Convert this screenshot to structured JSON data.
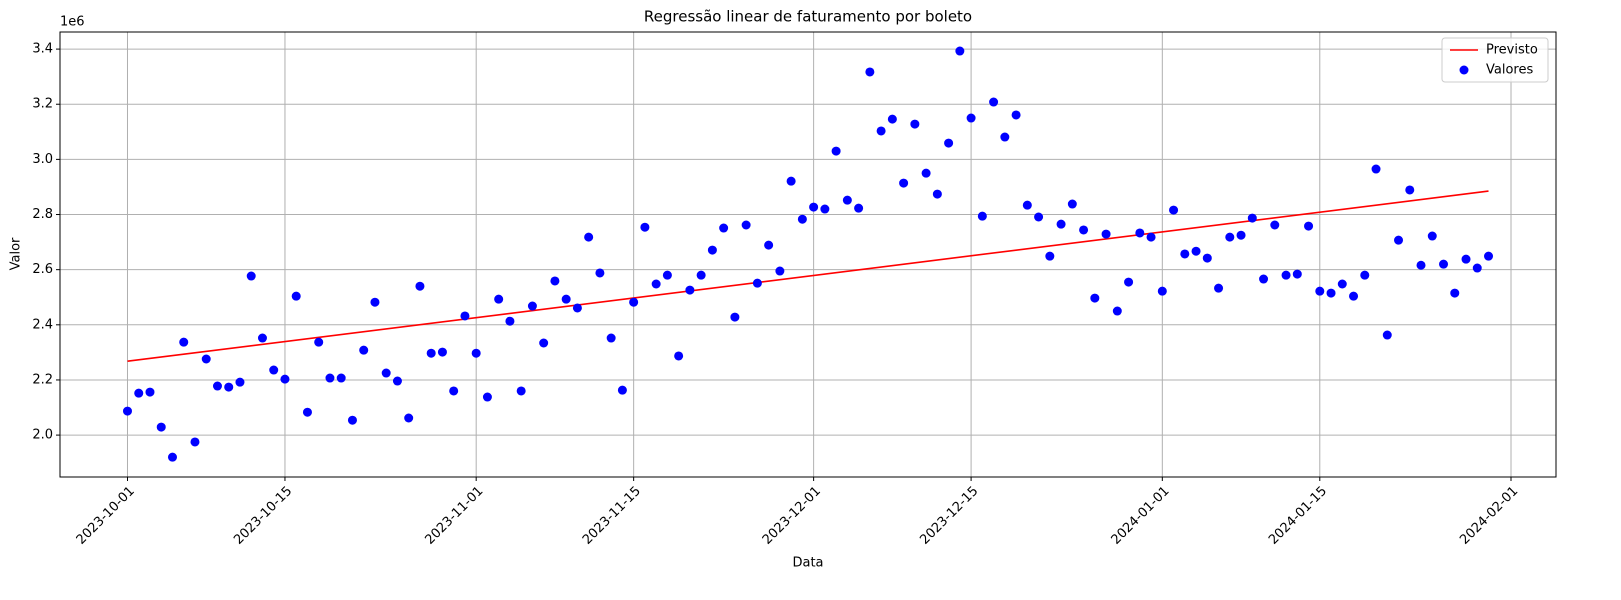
{
  "chart_data": {
    "type": "scatter",
    "title": "Regressão linear de faturamento por boleto",
    "xlabel": "Data",
    "ylabel": "Valor",
    "y_offset_label": "1e6",
    "grid": true,
    "legend": "upper right",
    "xlim": [
      "2023-09-25",
      "2024-02-05"
    ],
    "xticks": [
      "2023-10-01",
      "2023-10-15",
      "2023-11-01",
      "2023-11-15",
      "2023-12-01",
      "2023-12-15",
      "2024-01-01",
      "2024-01-15",
      "2024-02-01"
    ],
    "ylim": [
      1848000,
      3462000
    ],
    "yticks": [
      {
        "value": 2000000,
        "label": "2.0"
      },
      {
        "value": 2200000,
        "label": "2.2"
      },
      {
        "value": 2400000,
        "label": "2.4"
      },
      {
        "value": 2600000,
        "label": "2.6"
      },
      {
        "value": 2800000,
        "label": "2.8"
      },
      {
        "value": 3000000,
        "label": "3.0"
      },
      {
        "value": 3200000,
        "label": "3.2"
      },
      {
        "value": 3400000,
        "label": "3.4"
      }
    ],
    "series": [
      {
        "name": "Previsto",
        "type": "line",
        "color": "#ff0000",
        "x": [
          "2023-10-01",
          "2024-01-30"
        ],
        "values": [
          2268000,
          2885000
        ]
      },
      {
        "name": "Valores",
        "type": "scatter",
        "color": "#0000ff",
        "x": [
          "2023-10-01",
          "2023-10-02",
          "2023-10-03",
          "2023-10-04",
          "2023-10-05",
          "2023-10-06",
          "2023-10-07",
          "2023-10-08",
          "2023-10-09",
          "2023-10-10",
          "2023-10-11",
          "2023-10-12",
          "2023-10-13",
          "2023-10-14",
          "2023-10-15",
          "2023-10-16",
          "2023-10-17",
          "2023-10-18",
          "2023-10-19",
          "2023-10-20",
          "2023-10-21",
          "2023-10-22",
          "2023-10-23",
          "2023-10-24",
          "2023-10-25",
          "2023-10-26",
          "2023-10-27",
          "2023-10-28",
          "2023-10-29",
          "2023-10-30",
          "2023-10-31",
          "2023-11-01",
          "2023-11-02",
          "2023-11-03",
          "2023-11-04",
          "2023-11-05",
          "2023-11-06",
          "2023-11-07",
          "2023-11-08",
          "2023-11-09",
          "2023-11-10",
          "2023-11-11",
          "2023-11-12",
          "2023-11-13",
          "2023-11-14",
          "2023-11-15",
          "2023-11-16",
          "2023-11-17",
          "2023-11-18",
          "2023-11-19",
          "2023-11-20",
          "2023-11-21",
          "2023-11-22",
          "2023-11-23",
          "2023-11-24",
          "2023-11-25",
          "2023-11-26",
          "2023-11-27",
          "2023-11-28",
          "2023-11-29",
          "2023-11-30",
          "2023-12-01",
          "2023-12-02",
          "2023-12-03",
          "2023-12-04",
          "2023-12-05",
          "2023-12-06",
          "2023-12-07",
          "2023-12-08",
          "2023-12-09",
          "2023-12-10",
          "2023-12-11",
          "2023-12-12",
          "2023-12-13",
          "2023-12-14",
          "2023-12-15",
          "2023-12-16",
          "2023-12-17",
          "2023-12-18",
          "2023-12-19",
          "2023-12-20",
          "2023-12-21",
          "2023-12-22",
          "2023-12-23",
          "2023-12-24",
          "2023-12-25",
          "2023-12-26",
          "2023-12-27",
          "2023-12-28",
          "2023-12-29",
          "2023-12-30",
          "2023-12-31",
          "2024-01-01",
          "2024-01-02",
          "2024-01-03",
          "2024-01-04",
          "2024-01-05",
          "2024-01-06",
          "2024-01-07",
          "2024-01-08",
          "2024-01-09",
          "2024-01-10",
          "2024-01-11",
          "2024-01-12",
          "2024-01-13",
          "2024-01-14",
          "2024-01-15",
          "2024-01-16",
          "2024-01-17",
          "2024-01-18",
          "2024-01-19",
          "2024-01-20",
          "2024-01-21",
          "2024-01-22",
          "2024-01-23",
          "2024-01-24",
          "2024-01-25",
          "2024-01-26",
          "2024-01-27",
          "2024-01-28",
          "2024-01-29",
          "2024-01-30"
        ],
        "values": [
          2087000,
          2152000,
          2156000,
          2029000,
          1920000,
          2337000,
          1975000,
          2276000,
          2178000,
          2174000,
          2192000,
          2577000,
          2352000,
          2236000,
          2203000,
          2504000,
          2083000,
          2337000,
          2207000,
          2207000,
          2054000,
          2308000,
          2482000,
          2225000,
          2196000,
          2062000,
          2540000,
          2297000,
          2301000,
          2160000,
          2432000,
          2297000,
          2138000,
          2493000,
          2413000,
          2160000,
          2468000,
          2334000,
          2559000,
          2493000,
          2461000,
          2718000,
          2588000,
          2352000,
          2163000,
          2482000,
          2754000,
          2548000,
          2580000,
          2287000,
          2526000,
          2580000,
          2671000,
          2751000,
          2428000,
          2762000,
          2551000,
          2689000,
          2595000,
          2921000,
          2783000,
          2827000,
          2820000,
          3030000,
          2852000,
          2823000,
          3317000,
          3103000,
          3146000,
          2914000,
          3128000,
          2950000,
          2874000,
          3059000,
          3393000,
          3150000,
          2794000,
          3208000,
          3081000,
          3161000,
          2834000,
          2791000,
          2649000,
          2765000,
          2838000,
          2744000,
          2497000,
          2729000,
          2450000,
          2555000,
          2733000,
          2718000,
          2522000,
          2816000,
          2657000,
          2667000,
          2642000,
          2533000,
          2718000,
          2725000,
          2787000,
          2566000,
          2762000,
          2580000,
          2584000,
          2758000,
          2522000,
          2515000,
          2548000,
          2504000,
          2580000,
          2965000,
          2363000,
          2707000,
          2889000,
          2616000,
          2722000,
          2620000,
          2515000,
          2638000,
          2606000,
          2649000
        ]
      }
    ]
  }
}
